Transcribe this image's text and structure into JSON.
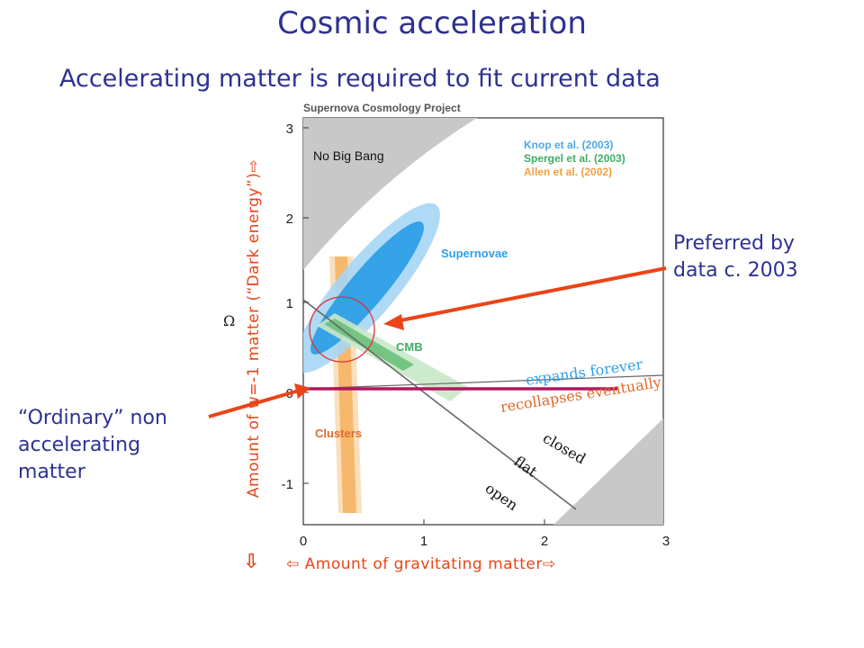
{
  "slide": {
    "title": "Cosmic acceleration",
    "subtitle": "Accelerating matter is required to fit current data"
  },
  "notes": {
    "preferred_line1": "Preferred by",
    "preferred_line2": "data c. 2003",
    "ordinary_line1": "“Ordinary” non",
    "ordinary_line2": "accelerating",
    "ordinary_line3": "matter"
  },
  "axes": {
    "x_label": "⇦ Amount of gravitating matter⇨",
    "y_label": "Amount of w=-1 matter (“Dark energy”)⇨",
    "y_arrow": "⇩",
    "omega_symbol": "Ω"
  },
  "figure": {
    "header": "Supernova Cosmology Project",
    "no_big_bang": "No Big Bang",
    "legend": [
      {
        "label": "Knop et al. (2003)",
        "color": "#4aa9e6"
      },
      {
        "label": "Spergel et al. (2003)",
        "color": "#3fae63"
      },
      {
        "label": "Allen et al. (2002)",
        "color": "#f0a040"
      }
    ],
    "regions": {
      "supernovae": "Supernovae",
      "cmb": "CMB",
      "clusters": "Clusters",
      "expands": "expands forever",
      "recollapses": "recollapses eventually",
      "closed": "closed",
      "flat": "flat",
      "open": "open"
    },
    "x_ticks": [
      "0",
      "1",
      "2",
      "3"
    ],
    "y_ticks": [
      "3",
      "2",
      "1",
      "0",
      "-1"
    ],
    "colors": {
      "supernovae": "#2f9fe6",
      "cmb": "#3fae63",
      "clusters": "#f0a040",
      "highlight_line": "#b0185f",
      "arrow": "#ea4418",
      "text_blue": "#2e3192"
    }
  }
}
